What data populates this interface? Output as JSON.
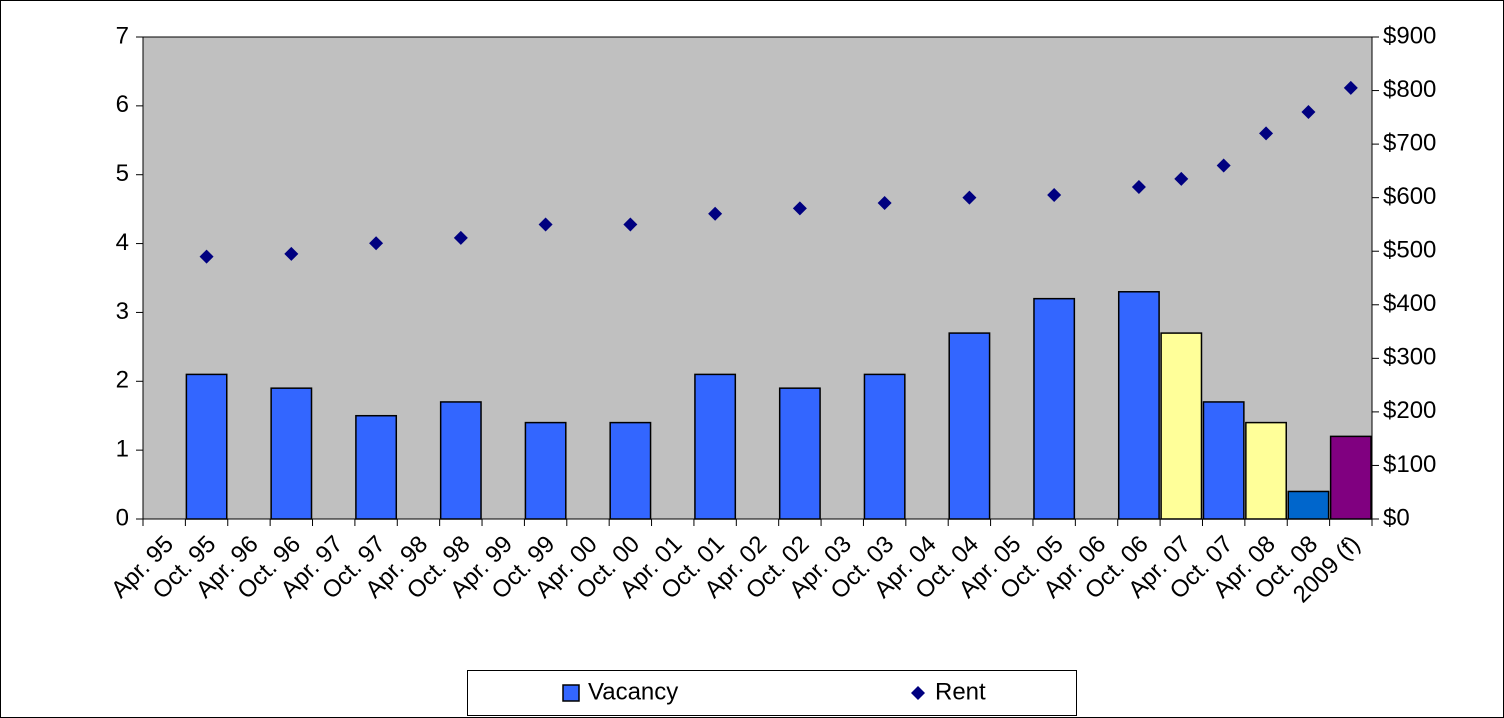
{
  "chart_data": {
    "type": "bar-scatter",
    "categories": [
      "Apr. 95",
      "Oct. 95",
      "Apr. 96",
      "Oct. 96",
      "Apr. 97",
      "Oct. 97",
      "Apr. 98",
      "Oct. 98",
      "Apr. 99",
      "Oct. 99",
      "Apr. 00",
      "Oct. 00",
      "Apr. 01",
      "Oct. 01",
      "Apr. 02",
      "Oct. 02",
      "Apr. 03",
      "Oct. 03",
      "Apr. 04",
      "Oct. 04",
      "Apr. 05",
      "Oct. 05",
      "Apr. 06",
      "Oct. 06",
      "Apr. 07",
      "Oct. 07",
      "Apr. 08",
      "Oct. 08",
      "2009 (f)"
    ],
    "series": [
      {
        "name": "Vacancy",
        "type": "bar",
        "color": "#3366ff",
        "values": [
          null,
          2.1,
          null,
          1.9,
          null,
          1.5,
          null,
          1.7,
          null,
          1.4,
          null,
          1.4,
          null,
          2.1,
          null,
          1.9,
          null,
          2.1,
          null,
          2.7,
          null,
          3.2,
          null,
          3.3,
          2.7,
          1.7,
          1.4,
          0.4,
          1.2
        ],
        "colors": [
          null,
          "#3366ff",
          null,
          "#3366ff",
          null,
          "#3366ff",
          null,
          "#3366ff",
          null,
          "#3366ff",
          null,
          "#3366ff",
          null,
          "#3366ff",
          null,
          "#3366ff",
          null,
          "#3366ff",
          null,
          "#3366ff",
          null,
          "#3366ff",
          null,
          "#3366ff",
          "#ffff99",
          "#3366ff",
          "#ffff99",
          "#0066cc",
          "#800080"
        ]
      },
      {
        "name": "Rent",
        "type": "scatter",
        "axis": "y2",
        "color": "#000080",
        "values": [
          null,
          490,
          null,
          495,
          null,
          515,
          null,
          525,
          null,
          550,
          null,
          550,
          null,
          570,
          null,
          580,
          null,
          590,
          null,
          600,
          null,
          605,
          null,
          620,
          635,
          660,
          720,
          760,
          805
        ]
      }
    ],
    "ylim": [
      0,
      7
    ],
    "yticks": [
      0,
      1,
      2,
      3,
      4,
      5,
      6,
      7
    ],
    "y2lim": [
      0,
      900
    ],
    "y2ticks": [
      {
        "value": 0,
        "label": "$0"
      },
      {
        "value": 100,
        "label": "$100"
      },
      {
        "value": 200,
        "label": "$200"
      },
      {
        "value": 300,
        "label": "$300"
      },
      {
        "value": 400,
        "label": "$400"
      },
      {
        "value": 500,
        "label": "$500"
      },
      {
        "value": 600,
        "label": "$600"
      },
      {
        "value": 700,
        "label": "$700"
      },
      {
        "value": 800,
        "label": "$800"
      },
      {
        "value": 900,
        "label": "$900"
      }
    ],
    "plot_background": "#c0c0c0",
    "legend": "bottom"
  }
}
